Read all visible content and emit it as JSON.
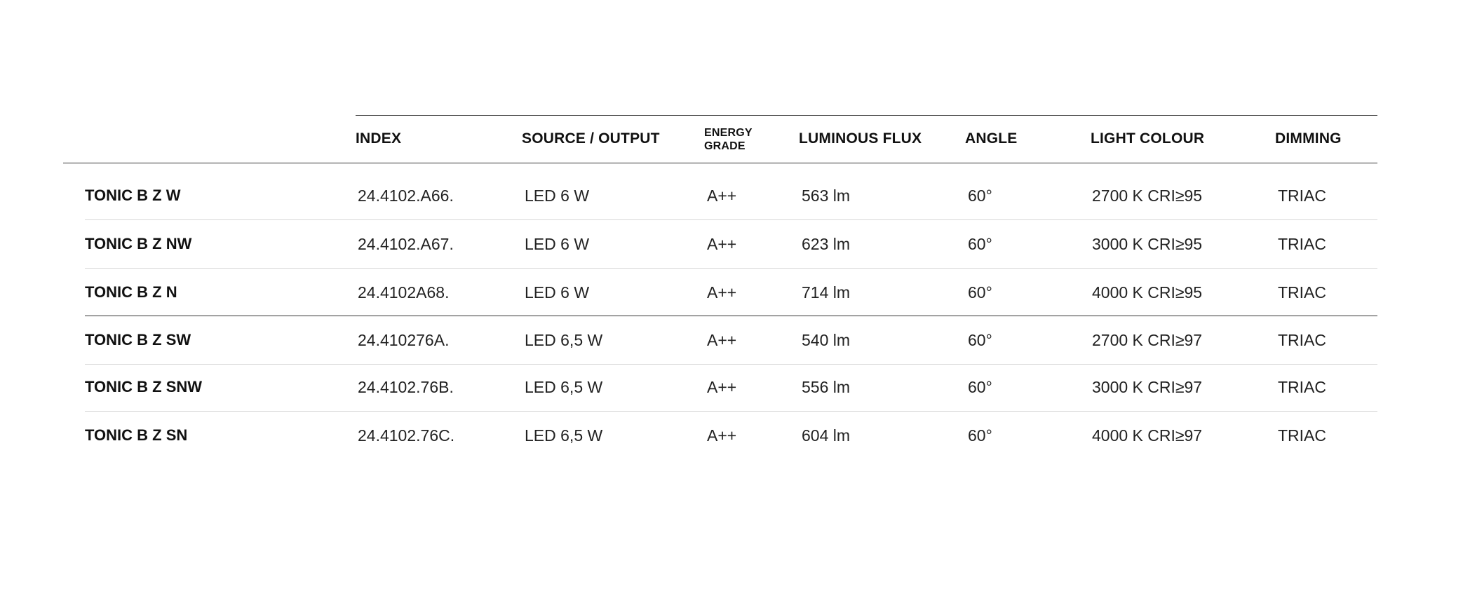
{
  "table": {
    "headers": {
      "index": "INDEX",
      "source_output": "SOURCE / OUTPUT",
      "energy_grade_line1": "ENERGY",
      "energy_grade_line2": "GRADE",
      "luminous_flux": "LUMINOUS FLUX",
      "angle": "ANGLE",
      "light_colour": "LIGHT COLOUR",
      "dimming": "DIMMING"
    },
    "rows": [
      {
        "name": "TONIC B Z W",
        "index": "24.4102.A66.",
        "source_output": "LED 6 W",
        "energy_grade": "A++",
        "luminous_flux": "563 lm",
        "angle": "60°",
        "light_colour": "2700 K CRI≥95",
        "dimming": "TRIAC"
      },
      {
        "name": "TONIC B Z NW",
        "index": "24.4102.A67.",
        "source_output": "LED 6 W",
        "energy_grade": "A++",
        "luminous_flux": "623 lm",
        "angle": "60°",
        "light_colour": "3000 K CRI≥95",
        "dimming": "TRIAC"
      },
      {
        "name": "TONIC B Z N",
        "index": "24.4102A68.",
        "source_output": "LED 6 W",
        "energy_grade": "A++",
        "luminous_flux": "714 lm",
        "angle": "60°",
        "light_colour": "4000 K CRI≥95",
        "dimming": "TRIAC"
      },
      {
        "name": "TONIC B Z SW",
        "index": "24.410276A.",
        "source_output": "LED 6,5 W",
        "energy_grade": "A++",
        "luminous_flux": "540 lm",
        "angle": "60°",
        "light_colour": "2700 K CRI≥97",
        "dimming": "TRIAC"
      },
      {
        "name": "TONIC B Z SNW",
        "index": "24.4102.76B.",
        "source_output": "LED 6,5 W",
        "energy_grade": "A++",
        "luminous_flux": "556 lm",
        "angle": "60°",
        "light_colour": "3000 K CRI≥97",
        "dimming": "TRIAC"
      },
      {
        "name": "TONIC B Z SN",
        "index": "24.4102.76C.",
        "source_output": "LED 6,5 W",
        "energy_grade": "A++",
        "luminous_flux": "604 lm",
        "angle": "60°",
        "light_colour": "4000 K CRI≥97",
        "dimming": "TRIAC"
      }
    ]
  }
}
